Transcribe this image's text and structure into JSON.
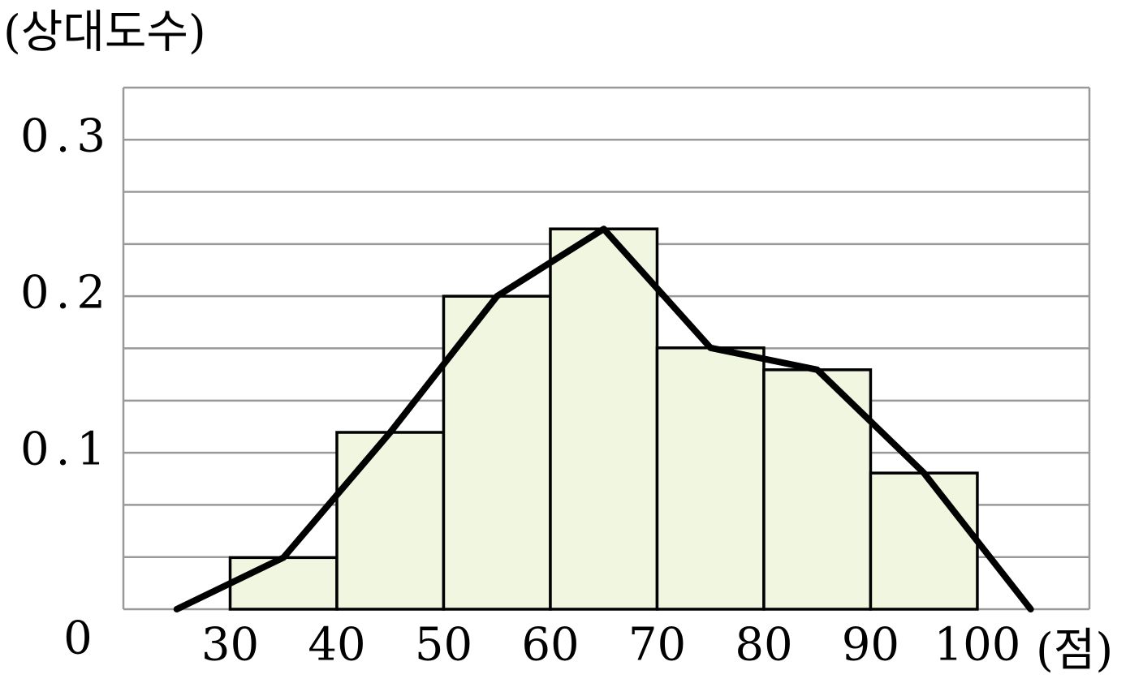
{
  "chart_data": {
    "type": "histogram",
    "y_label": "(상대도수)",
    "x_label": "(점)",
    "bins": [
      30,
      40,
      50,
      60,
      70,
      80,
      90,
      100
    ],
    "values": [
      0.033,
      0.113,
      0.2,
      0.243,
      0.167,
      0.153,
      0.087
    ],
    "color": "#f1f6e0",
    "polygon": {
      "x": [
        25,
        35,
        45,
        55,
        65,
        75,
        85,
        95,
        105
      ],
      "values": [
        0,
        0.033,
        0.113,
        0.2,
        0.243,
        0.167,
        0.153,
        0.087,
        0
      ],
      "color": "#000000"
    },
    "xlim": [
      20,
      110.5
    ],
    "xticks": [
      30,
      40,
      50,
      60,
      70,
      80,
      90,
      100
    ],
    "ylim": [
      0,
      0.3333
    ],
    "yticks": [
      0,
      0.1,
      0.2,
      0.3
    ],
    "grid_yticks": [
      0.0333,
      0.0667,
      0.1,
      0.1333,
      0.1667,
      0.2,
      0.2333,
      0.2667,
      0.3,
      0.3333
    ],
    "grid": true
  }
}
